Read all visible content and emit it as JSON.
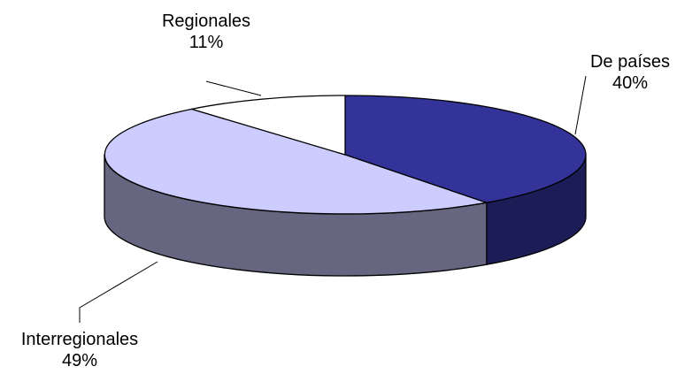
{
  "chart_data": {
    "type": "pie",
    "style": "3d",
    "categories": [
      "De países",
      "Interregionales",
      "Regionales"
    ],
    "values": [
      40,
      49,
      11
    ],
    "value_labels": [
      "40%",
      "49%",
      "11%"
    ],
    "colors": [
      "#333399",
      "#ccccff",
      "#ffffff"
    ],
    "side_colors": [
      "#1c1c57",
      "#666680",
      "#8c8c8c"
    ],
    "legend": "none"
  }
}
